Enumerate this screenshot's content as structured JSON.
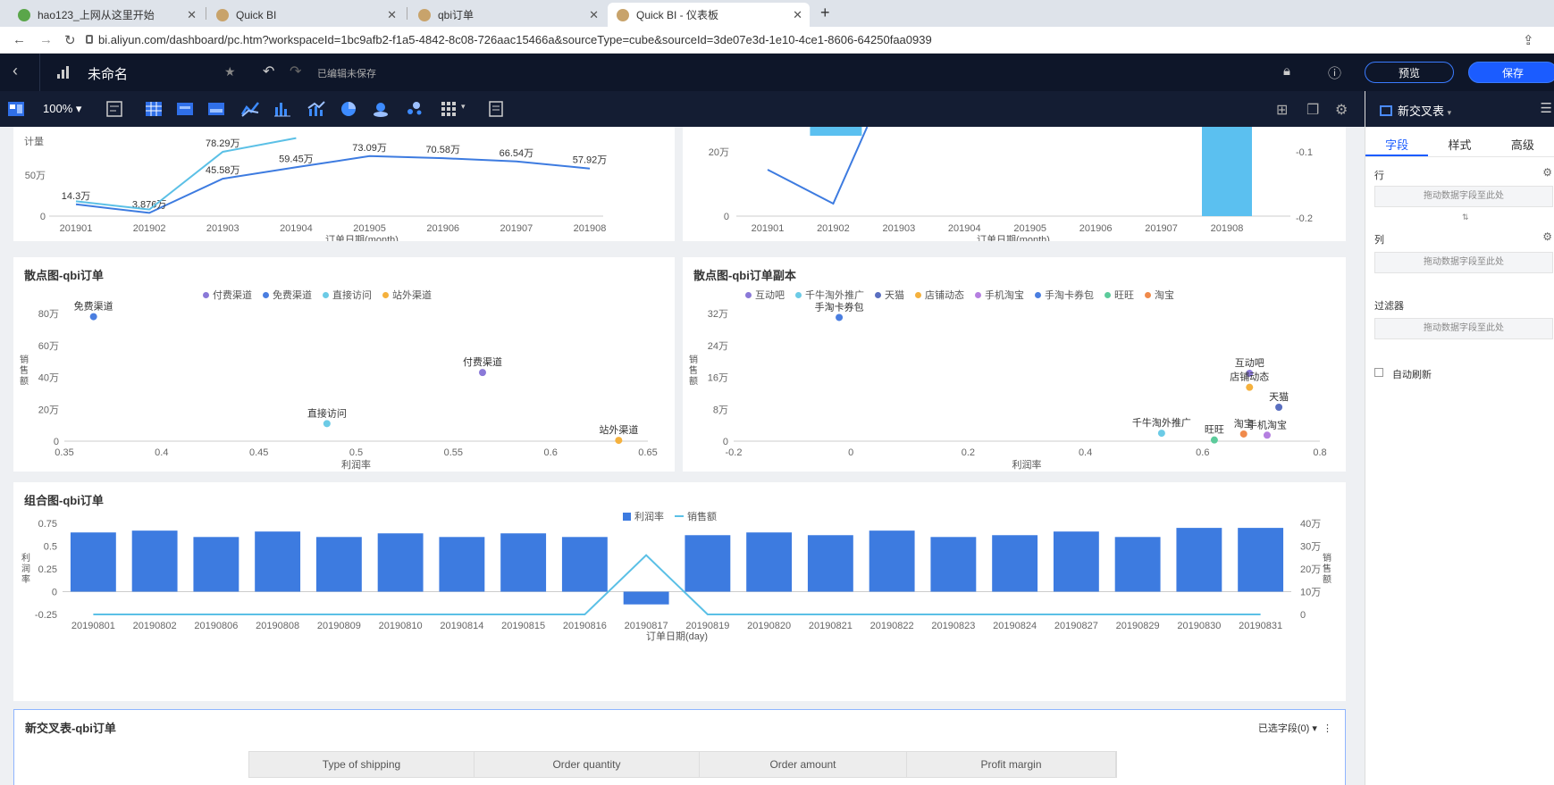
{
  "browser": {
    "tabs": [
      {
        "title": "hao123_上网从这里开始"
      },
      {
        "title": "Quick BI"
      },
      {
        "title": "qbi订单"
      },
      {
        "title": "Quick BI - 仪表板"
      }
    ],
    "url": "bi.aliyun.com/dashboard/pc.htm?workspaceId=1bc9afb2-f1a5-4842-8c08-726aac15466a&sourceType=cube&sourceId=3de07e3d-1e10-4ce1-8606-64250faa0939"
  },
  "header": {
    "title": "未命名",
    "status": "已编辑未保存",
    "preview_label": "预览",
    "save_label": "保存"
  },
  "toolbar": {
    "zoom": "100%"
  },
  "panel": {
    "title": "新交叉表",
    "tabs": [
      "字段",
      "样式",
      "高级"
    ],
    "row_label": "行",
    "col_label": "列",
    "filter_label": "过滤器",
    "drop_hint": "拖动数据字段至此处",
    "auto_refresh": "自动刷新"
  },
  "chart_data": [
    {
      "type": "line",
      "title": "",
      "xlabel": "订单日期(month)",
      "ylabel": "计量",
      "categories": [
        "201901",
        "201902",
        "201903",
        "201904",
        "201905",
        "201906",
        "201907",
        "201908"
      ],
      "series": [
        {
          "name": "",
          "values": [
            14.3,
            3.876,
            45.58,
            59.45,
            73.09,
            70.58,
            66.54,
            57.92
          ],
          "labels": [
            "14.3万",
            "3.876万",
            "45.58万",
            "59.45万",
            "73.09万",
            "70.58万",
            "66.54万",
            "57.92万"
          ],
          "color": "#3d7be0"
        },
        {
          "name": "",
          "values": [
            18,
            8,
            78.29,
            95,
            null,
            null,
            null,
            null
          ],
          "labels": [
            "",
            "",
            "78.29万",
            "",
            "",
            "",
            "",
            ""
          ],
          "color": "#5bc0e6"
        }
      ],
      "y_ticks": [
        "0",
        "50万"
      ]
    },
    {
      "type": "bar",
      "title": "",
      "xlabel": "订单日期(month)",
      "categories": [
        "201901",
        "201902",
        "201903",
        "201904",
        "201905",
        "201906",
        "201907",
        "201908"
      ],
      "y_ticks": [
        "0",
        "20万"
      ],
      "y2_ticks": [
        "-0.1",
        "-0.2"
      ]
    },
    {
      "type": "scatter",
      "title": "散点图-qbi订单",
      "xlabel": "利润率",
      "ylabel": "销售额",
      "legend": [
        {
          "name": "付费渠道",
          "color": "#8a79d8"
        },
        {
          "name": "免费渠道",
          "color": "#4a7ee0"
        },
        {
          "name": "直接访问",
          "color": "#6ccbe6"
        },
        {
          "name": "站外渠道",
          "color": "#f5b13d"
        }
      ],
      "points": [
        {
          "name": "免费渠道",
          "x": 0.365,
          "y": 78,
          "color": "#4a7ee0"
        },
        {
          "name": "付费渠道",
          "x": 0.565,
          "y": 43,
          "color": "#8a79d8"
        },
        {
          "name": "直接访问",
          "x": 0.485,
          "y": 11,
          "color": "#6ccbe6"
        },
        {
          "name": "站外渠道",
          "x": 0.635,
          "y": 0.5,
          "color": "#f5b13d"
        }
      ],
      "x_ticks": [
        "0.35",
        "0.4",
        "0.45",
        "0.5",
        "0.55",
        "0.6",
        "0.65"
      ],
      "y_ticks": [
        "0",
        "20万",
        "40万",
        "60万",
        "80万"
      ]
    },
    {
      "type": "scatter",
      "title": "散点图-qbi订单副本",
      "xlabel": "利润率",
      "ylabel": "销售额",
      "legend": [
        {
          "name": "互动吧",
          "color": "#8a79d8"
        },
        {
          "name": "千牛淘外推广",
          "color": "#6ccbe6"
        },
        {
          "name": "天猫",
          "color": "#5a6fc0"
        },
        {
          "name": "店铺动态",
          "color": "#f5b13d"
        },
        {
          "name": "手机淘宝",
          "color": "#b57fe0"
        },
        {
          "name": "手淘卡券包",
          "color": "#4a7ee0"
        },
        {
          "name": "旺旺",
          "color": "#5ccb9b"
        },
        {
          "name": "淘宝",
          "color": "#f08a4b"
        }
      ],
      "points": [
        {
          "name": "手淘卡券包",
          "x": -0.02,
          "y": 31,
          "color": "#4a7ee0"
        },
        {
          "name": "互动吧",
          "x": 0.68,
          "y": 17,
          "color": "#8a79d8"
        },
        {
          "name": "店铺动态",
          "x": 0.68,
          "y": 13.5,
          "color": "#f5b13d"
        },
        {
          "name": "天猫",
          "x": 0.73,
          "y": 8.5,
          "color": "#5a6fc0"
        },
        {
          "name": "千牛淘外推广",
          "x": 0.53,
          "y": 2,
          "color": "#6ccbe6"
        },
        {
          "name": "旺旺",
          "x": 0.62,
          "y": 0.3,
          "color": "#5ccb9b"
        },
        {
          "name": "淘宝",
          "x": 0.67,
          "y": 1.8,
          "color": "#f08a4b"
        },
        {
          "name": "手机淘宝",
          "x": 0.71,
          "y": 1.5,
          "color": "#b57fe0"
        }
      ],
      "x_ticks": [
        "-0.2",
        "0",
        "0.2",
        "0.4",
        "0.6",
        "0.8"
      ],
      "y_ticks": [
        "0",
        "8万",
        "16万",
        "24万",
        "32万"
      ]
    },
    {
      "type": "bar",
      "title": "组合图-qbi订单",
      "xlabel": "订单日期(day)",
      "ylabel": "利润率",
      "y2label": "销售额",
      "legend": [
        {
          "name": "利润率",
          "color": "#3d7be0"
        },
        {
          "name": "销售额",
          "color": "#5bc0e6"
        }
      ],
      "categories": [
        "20190801",
        "20190802",
        "20190806",
        "20190808",
        "20190809",
        "20190810",
        "20190814",
        "20190815",
        "20190816",
        "20190817",
        "20190819",
        "20190820",
        "20190821",
        "20190822",
        "20190823",
        "20190824",
        "20190827",
        "20190829",
        "20190830",
        "20190831"
      ],
      "series": [
        {
          "name": "利润率",
          "values": [
            0.65,
            0.67,
            0.6,
            0.66,
            0.6,
            0.64,
            0.6,
            0.64,
            0.6,
            -0.14,
            0.62,
            0.65,
            0.62,
            0.67,
            0.6,
            0.62,
            0.66,
            0.6,
            0.7,
            0.7
          ]
        },
        {
          "name": "销售额",
          "values": [
            0,
            0,
            0,
            0,
            0,
            0,
            0,
            0,
            0,
            26,
            0,
            0,
            0,
            0,
            0,
            0,
            0,
            0,
            0,
            0
          ]
        }
      ],
      "y_ticks": [
        "-0.25",
        "0",
        "0.25",
        "0.5",
        "0.75"
      ],
      "y2_ticks": [
        "0",
        "10万",
        "20万",
        "30万",
        "40万"
      ]
    }
  ],
  "table": {
    "title": "新交叉表-qbi订单",
    "selected_fields": "已选字段(0)",
    "columns": [
      "Type of shipping",
      "Order quantity",
      "Order amount",
      "Profit margin"
    ]
  }
}
